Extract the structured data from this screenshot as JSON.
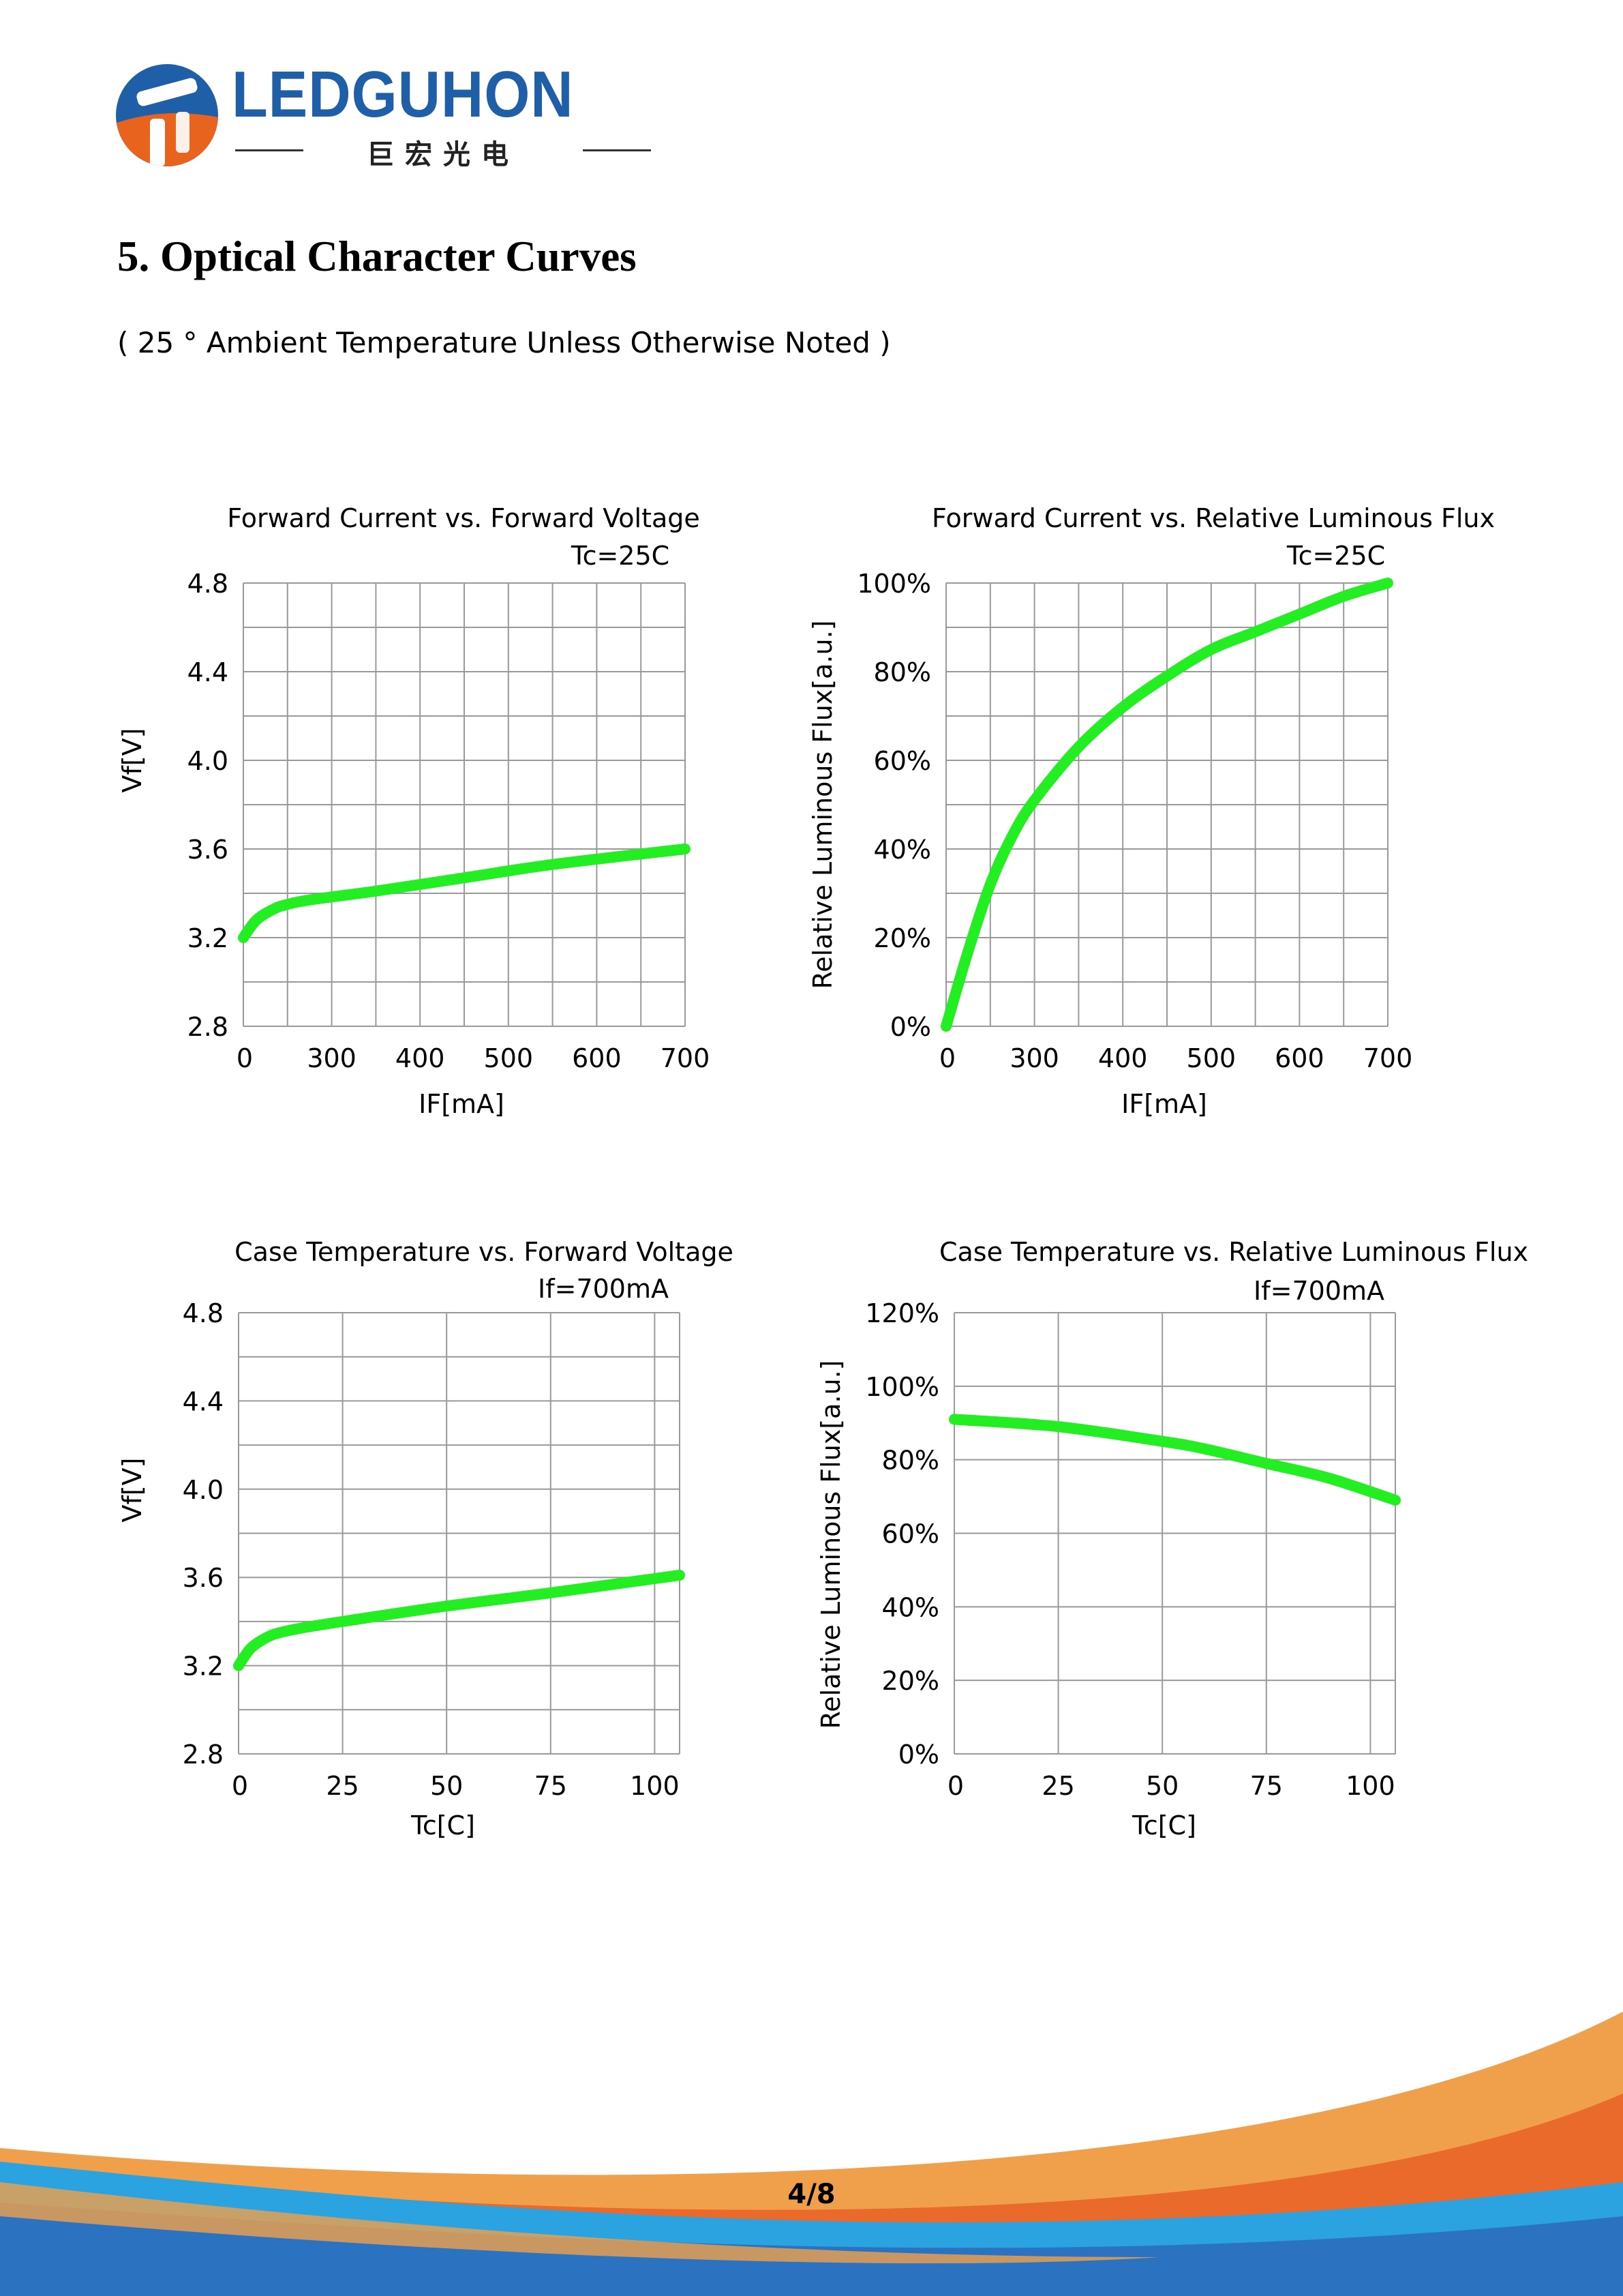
{
  "header": {
    "logo_text": "LEDGUHON",
    "logo_subtitle": "巨宏光电"
  },
  "section": {
    "title": "5. Optical Character Curves",
    "subtitle": "( 25 ° Ambient Temperature Unless Otherwise Noted )"
  },
  "footer": {
    "page_number": "4/8"
  },
  "colors": {
    "curve": "#22ee22",
    "grid": "#999999",
    "logo_blue": "#1f5fa8",
    "logo_orange": "#e8641e"
  },
  "chart_data": [
    {
      "type": "line",
      "title": "Forward Current vs. Forward Voltage",
      "annotation": "Tc=25C",
      "xlabel": "IF[mA]",
      "ylabel": "Vf[V]",
      "xticks": [
        "0",
        "300",
        "400",
        "500",
        "600",
        "700"
      ],
      "yticks": [
        "4.8",
        "4.4",
        "4.0",
        "3.6",
        "3.2",
        "2.8"
      ],
      "grid_cols": 10,
      "grid_rows": 10,
      "ylim": [
        2.8,
        4.8
      ],
      "series": [
        {
          "x": [
            0,
            0.3,
            0.7,
            1,
            1.5,
            3,
            5,
            7,
            10
          ],
          "y": [
            3.2,
            3.28,
            3.33,
            3.35,
            3.37,
            3.41,
            3.47,
            3.53,
            3.6
          ]
        }
      ]
    },
    {
      "type": "line",
      "title": "Forward Current vs. Relative Luminous Flux",
      "annotation": "Tc=25C",
      "xlabel": "IF[mA]",
      "ylabel": "Relative Luminous Flux[a.u.]",
      "xticks": [
        "0",
        "300",
        "400",
        "500",
        "600",
        "700"
      ],
      "yticks": [
        "100%",
        "80%",
        "60%",
        "40%",
        "20%",
        "0%"
      ],
      "grid_cols": 10,
      "grid_rows": 10,
      "ylim": [
        0,
        100
      ],
      "series": [
        {
          "x": [
            0,
            0.5,
            1,
            1.5,
            2,
            3,
            4,
            5,
            6,
            7,
            8,
            9,
            10
          ],
          "y": [
            0,
            17,
            32,
            43,
            51,
            63,
            72,
            79,
            85,
            89,
            93,
            97,
            100
          ]
        }
      ]
    },
    {
      "type": "line",
      "title": "Case Temperature vs. Forward Voltage",
      "annotation": "If=700mA",
      "xlabel": "Tc[C]",
      "ylabel": "Vf[V]",
      "xticks": [
        "0",
        "25",
        "50",
        "75",
        "100"
      ],
      "yticks": [
        "4.8",
        "4.4",
        "4.0",
        "3.6",
        "3.2",
        "2.8"
      ],
      "xlim": [
        0,
        106
      ],
      "ylim": [
        2.8,
        4.8
      ],
      "xgrid": [
        25,
        50,
        75,
        100
      ],
      "grid_rows": 10,
      "series": [
        {
          "x": [
            0,
            3,
            7,
            10,
            15,
            25,
            50,
            75,
            106
          ],
          "y": [
            3.2,
            3.28,
            3.33,
            3.35,
            3.37,
            3.4,
            3.47,
            3.53,
            3.61
          ]
        }
      ]
    },
    {
      "type": "line",
      "title": "Case Temperature vs. Relative Luminous Flux",
      "annotation": "If=700mA",
      "xlabel": "Tc[C]",
      "ylabel": "Relative Luminous Flux[a.u.]",
      "xticks": [
        "0",
        "25",
        "50",
        "75",
        "100"
      ],
      "yticks": [
        "120%",
        "100%",
        "80%",
        "60%",
        "40%",
        "20%",
        "0%"
      ],
      "xlim": [
        0,
        106
      ],
      "ylim": [
        0,
        120
      ],
      "xgrid": [
        25,
        50,
        75,
        100
      ],
      "grid_rows": 6,
      "series": [
        {
          "x": [
            0,
            25,
            50,
            60,
            75,
            90,
            106
          ],
          "y": [
            91,
            89,
            85,
            83,
            79,
            75,
            69
          ]
        }
      ]
    }
  ]
}
